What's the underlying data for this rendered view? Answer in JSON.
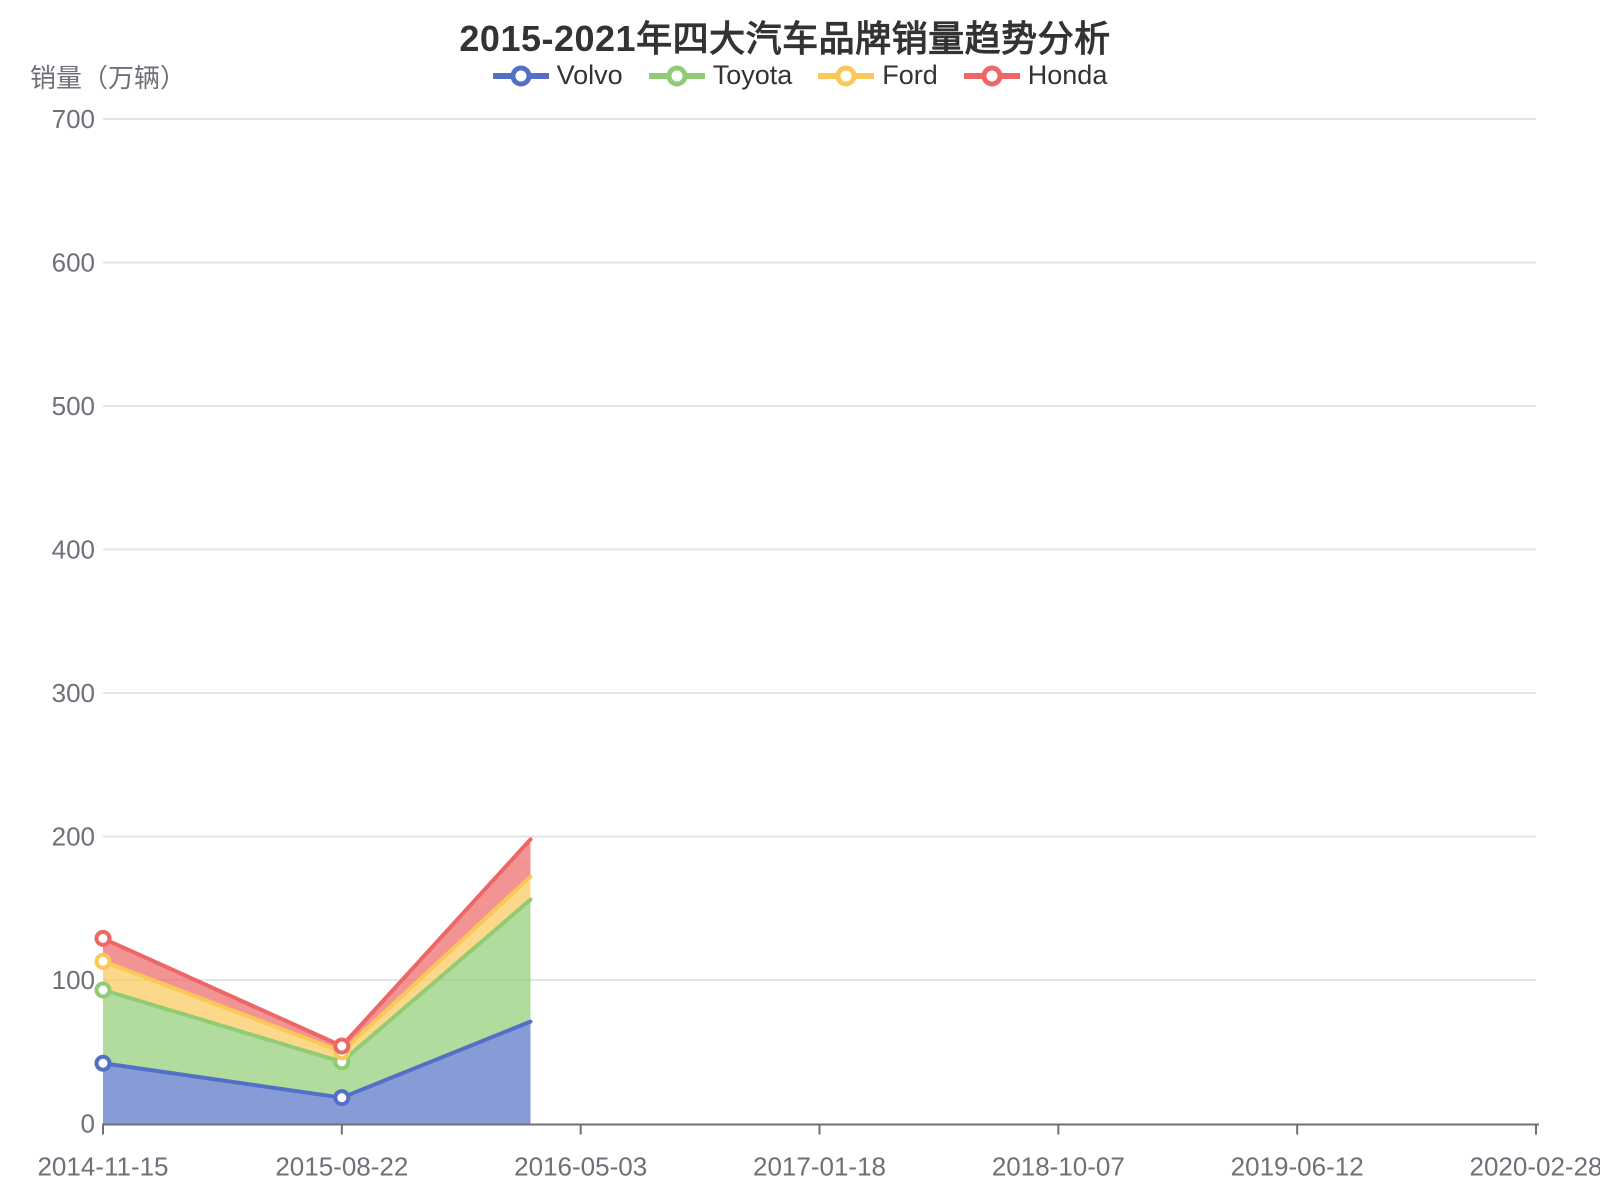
{
  "title": "2015-2021年四大汽车品牌销量趋势分析",
  "y_axis_name": "销量（万辆）",
  "legend": {
    "items": [
      {
        "label": "Volvo",
        "color": "#5470C6"
      },
      {
        "label": "Toyota",
        "color": "#91CC75"
      },
      {
        "label": "Ford",
        "color": "#FAC858"
      },
      {
        "label": "Honda",
        "color": "#EE6666"
      }
    ]
  },
  "chart_data": {
    "type": "area",
    "stacked": true,
    "title": "2015-2021年四大汽车品牌销量趋势分析",
    "xlabel": "",
    "ylabel": "销量（万辆）",
    "categories": [
      "2014-11-15",
      "2015-08-22",
      "2016-05-03",
      "2017-01-18",
      "2018-10-07",
      "2019-06-12",
      "2020-02-28"
    ],
    "y_ticks": [
      0,
      100,
      200,
      300,
      400,
      500,
      600,
      700
    ],
    "ylim": [
      0,
      700
    ],
    "grid": "horizontal-only",
    "legend_position": "top-center",
    "note": "Stacked area chart captured mid-draw animation: series are rendered only up to x-index 1.79 (about 79% of the way between 2015-08-22 and 2016-05-03); categories beyond the clip have no visible data.",
    "draw_clip_index": 1.79,
    "series": [
      {
        "name": "Volvo",
        "color": "#5470C6",
        "values_visible": [
          42,
          18
        ],
        "stack_tops": [
          42,
          18
        ],
        "stack_top_at_clip": 71
      },
      {
        "name": "Toyota",
        "color": "#91CC75",
        "values_visible": [
          51,
          25
        ],
        "stack_tops": [
          93,
          43
        ],
        "stack_top_at_clip": 156
      },
      {
        "name": "Ford",
        "color": "#FAC858",
        "values_visible": [
          20,
          7
        ],
        "stack_tops": [
          113,
          50
        ],
        "stack_top_at_clip": 172
      },
      {
        "name": "Honda",
        "color": "#EE6666",
        "values_visible": [
          16,
          4
        ],
        "stack_tops": [
          129,
          54
        ],
        "stack_top_at_clip": 198
      }
    ],
    "marker_style": "hollow-circle",
    "area_opacity": 0.7,
    "colors": {
      "grid_line": "#E0E6F1",
      "axis_line": "#6E7079",
      "axis_text": "#6E7079",
      "title_text": "#333333",
      "legend_text": "#333333",
      "background": "#FFFFFF"
    }
  }
}
